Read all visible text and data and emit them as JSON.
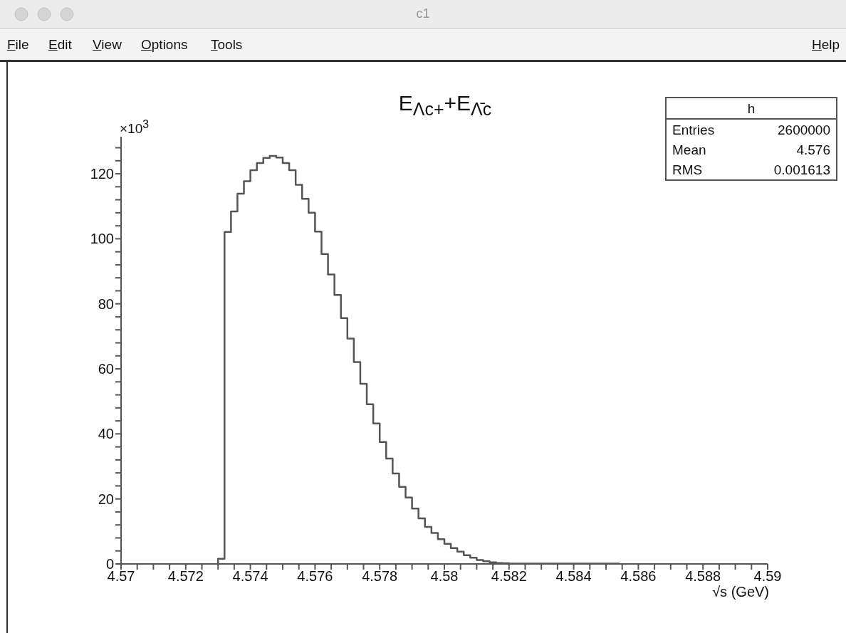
{
  "chart_data": {
    "type": "histogram",
    "title": "E$_{Λc+}$+E$_{Λ̄c}$",
    "xlabel": "√s (GeV)",
    "color": "#555555",
    "bins": [
      4.573,
      4.5732,
      4.5734,
      4.5736,
      4.5738,
      4.574,
      4.5742,
      4.5744,
      4.5746,
      4.5748,
      4.575,
      4.5752,
      4.5754,
      4.5756,
      4.5758,
      4.576,
      4.5762,
      4.5764,
      4.5766,
      4.5768,
      4.577,
      4.5772,
      4.5774,
      4.5776,
      4.5778,
      4.578,
      4.5782,
      4.5784,
      4.5786,
      4.5788,
      4.579,
      4.5792,
      4.5794,
      4.5796,
      4.5798,
      4.58,
      4.5802,
      4.5804,
      4.5806,
      4.5808,
      4.581,
      4.5812,
      4.5814,
      4.5816,
      4.5818,
      4.582,
      4.5822,
      4.5824,
      4.5826,
      4.5828,
      4.583,
      4.5832,
      4.5834,
      4.5836,
      4.5838,
      4.584,
      4.5842,
      4.5844,
      4.5846,
      4.5848,
      4.585,
      4.5852,
      4.5854
    ],
    "values": [
      1.6,
      102.1,
      108.4,
      113.9,
      117.7,
      121.1,
      123.3,
      124.9,
      125.5,
      125.0,
      123.3,
      121.1,
      116.6,
      112.3,
      108.0,
      102.2,
      95.3,
      89.0,
      82.7,
      75.6,
      69.3,
      62.1,
      55.4,
      49.1,
      43.2,
      37.5,
      32.4,
      27.8,
      23.7,
      20.4,
      17.0,
      14.0,
      11.4,
      9.5,
      7.6,
      6.2,
      4.9,
      3.8,
      2.7,
      1.9,
      1.2,
      0.8,
      0.5,
      0.3,
      0.2,
      0.1,
      0.1,
      0.1,
      0.1,
      0.1,
      0.1,
      0.1,
      0.1,
      0.1,
      0.1,
      0.1,
      0.1,
      0.1,
      0.1,
      0.1,
      0.1,
      0.1
    ],
    "xlim": [
      4.57,
      4.59
    ],
    "xticks": [
      4.57,
      {
        "value": 4.5705,
        "label": null
      },
      {
        "value": 4.571,
        "label": null
      },
      {
        "value": 4.5715,
        "label": null
      },
      4.572,
      {
        "value": 4.5725,
        "label": null
      },
      {
        "value": 4.573,
        "label": null
      },
      {
        "value": 4.5735,
        "label": null
      },
      4.574,
      {
        "value": 4.5745,
        "label": null
      },
      {
        "value": 4.575,
        "label": null
      },
      {
        "value": 4.5755,
        "label": null
      },
      4.576,
      {
        "value": 4.5765,
        "label": null
      },
      {
        "value": 4.577,
        "label": null
      },
      {
        "value": 4.5775,
        "label": null
      },
      4.578,
      {
        "value": 4.5785,
        "label": null
      },
      {
        "value": 4.579,
        "label": null
      },
      {
        "value": 4.5795,
        "label": null
      },
      4.58,
      {
        "value": 4.5805,
        "label": null
      },
      {
        "value": 4.581,
        "label": null
      },
      {
        "value": 4.5815,
        "label": null
      },
      4.582,
      {
        "value": 4.5825,
        "label": null
      },
      {
        "value": 4.583,
        "label": null
      },
      {
        "value": 4.5835,
        "label": null
      },
      4.584,
      {
        "value": 4.5845,
        "label": null
      },
      {
        "value": 4.585,
        "label": null
      },
      {
        "value": 4.5855,
        "label": null
      },
      4.586,
      {
        "value": 4.5865,
        "label": null
      },
      {
        "value": 4.587,
        "label": null
      },
      {
        "value": 4.5875,
        "label": null
      },
      4.588,
      {
        "value": 4.5885,
        "label": null
      },
      {
        "value": 4.589,
        "label": null
      },
      {
        "value": 4.5895,
        "label": null
      },
      4.59
    ],
    "ylim": [
      0,
      131.4
    ],
    "yticks": [
      0,
      {
        "value": 4,
        "label": null
      },
      {
        "value": 8,
        "label": null
      },
      {
        "value": 12,
        "label": null
      },
      {
        "value": 16,
        "label": null
      },
      20,
      {
        "value": 24,
        "label": null
      },
      {
        "value": 28,
        "label": null
      },
      {
        "value": 32,
        "label": null
      },
      {
        "value": 36,
        "label": null
      },
      40,
      {
        "value": 44,
        "label": null
      },
      {
        "value": 48,
        "label": null
      },
      {
        "value": 52,
        "label": null
      },
      {
        "value": 56,
        "label": null
      },
      60,
      {
        "value": 64,
        "label": null
      },
      {
        "value": 68,
        "label": null
      },
      {
        "value": 72,
        "label": null
      },
      {
        "value": 76,
        "label": null
      },
      80,
      {
        "value": 84,
        "label": null
      },
      {
        "value": 88,
        "label": null
      },
      {
        "value": 92,
        "label": null
      },
      {
        "value": 96,
        "label": null
      },
      100,
      {
        "value": 104,
        "label": null
      },
      {
        "value": 108,
        "label": null
      },
      {
        "value": 112,
        "label": null
      },
      {
        "value": 116,
        "label": null
      },
      120,
      {
        "value": 124,
        "label": null
      },
      {
        "value": 128,
        "label": null
      }
    ],
    "annotations": [
      "c1",
      "File",
      "Edit",
      "View",
      "Options",
      "Tools",
      "Help",
      "×10$^{3}$",
      "h",
      "Entries",
      "2600000",
      "Mean",
      "4.576",
      "RMS",
      "0.001613"
    ]
  }
}
